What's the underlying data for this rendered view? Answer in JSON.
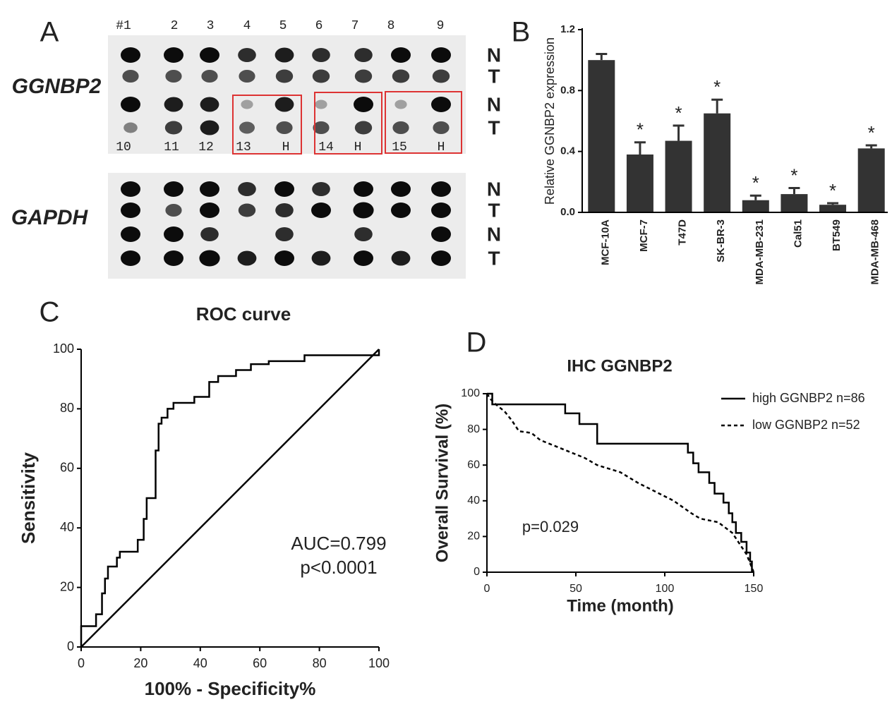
{
  "panel_a": {
    "panel_label": "A",
    "lane_numbers": [
      "#1",
      "2",
      "3",
      "4",
      "5",
      "6",
      "7",
      "8",
      "9"
    ],
    "lower_numbers": [
      "10",
      "11",
      "12",
      "13",
      "H",
      "14",
      "H",
      "15",
      "H"
    ],
    "genes": [
      "GGNBP2",
      "GAPDH"
    ],
    "rows": [
      [
        "N",
        "T",
        "N",
        "T"
      ],
      [
        "N",
        "T",
        "N",
        "T"
      ]
    ]
  },
  "chart_data": [
    {
      "type": "bar",
      "panel_label": "B",
      "y_label": "Relative GGNBP2 expression",
      "categories": [
        "MCF-10A",
        "MCF-7",
        "T47D",
        "SK-BR-3",
        "MDA-MB-231",
        "Cal51",
        "BT549",
        "MDA-MB-468"
      ],
      "values": [
        1.0,
        0.38,
        0.47,
        0.65,
        0.08,
        0.12,
        0.05,
        0.42
      ],
      "errors": [
        0.04,
        0.08,
        0.1,
        0.09,
        0.03,
        0.04,
        0.01,
        0.02
      ],
      "significance": [
        null,
        "*",
        "*",
        "*",
        "*",
        "*",
        "*",
        "*"
      ],
      "color": "#333333",
      "ylim": [
        0,
        1.2
      ],
      "yticks": [
        {
          "value": 0,
          "label": "0.0"
        },
        0.4,
        0.8,
        1.2
      ]
    },
    {
      "type": "line",
      "panel_label": "C",
      "title": "ROC curve",
      "x_label": "100% - Specificity%",
      "y_label": "Sensitivity",
      "annotations": [
        "AUC=0.799",
        "p<0.0001"
      ],
      "series": [
        {
          "color": "#000000",
          "dash": false,
          "x": [
            0,
            0,
            5,
            5,
            7,
            7,
            8,
            8,
            9,
            9,
            12,
            12,
            13,
            13,
            19,
            19,
            21,
            21,
            22,
            22,
            25,
            25,
            26,
            26,
            27,
            27,
            29,
            29,
            31,
            31,
            38,
            38,
            43,
            43,
            46,
            46,
            52,
            52,
            57,
            57,
            63,
            63,
            75,
            75,
            100,
            100
          ],
          "values": [
            0,
            7,
            7,
            11,
            11,
            18,
            18,
            23,
            23,
            27,
            27,
            30,
            30,
            32,
            32,
            36,
            36,
            43,
            43,
            50,
            50,
            66,
            66,
            75,
            75,
            77,
            77,
            80,
            80,
            82,
            82,
            84,
            84,
            89,
            89,
            91,
            91,
            93,
            93,
            95,
            95,
            96,
            96,
            98,
            98,
            100
          ]
        },
        {
          "color": "#000000",
          "dash": false,
          "x": [
            0,
            100
          ],
          "values": [
            0,
            100
          ]
        }
      ],
      "xlim": [
        0,
        100
      ],
      "xticks": [
        0,
        20,
        40,
        60,
        80,
        100
      ],
      "ylim": [
        0,
        100
      ],
      "yticks": [
        0,
        20,
        40,
        60,
        80,
        100
      ]
    },
    {
      "type": "line",
      "panel_label": "D",
      "title": "IHC GGNBP2",
      "x_label": "Time (month)",
      "y_label": "Overall Survival (%)",
      "annotations": [
        "p=0.029"
      ],
      "series": [
        {
          "name": "high GGNBP2 n=86",
          "color": "#000000",
          "dash": false,
          "x": [
            0,
            3,
            3,
            44,
            44,
            52,
            52,
            62,
            62,
            113,
            113,
            116,
            116,
            119,
            119,
            125,
            125,
            128,
            128,
            133,
            133,
            136,
            136,
            138,
            138,
            140,
            140,
            143,
            143,
            146,
            146,
            148,
            148,
            149,
            149
          ],
          "values": [
            100,
            100,
            94,
            94,
            89,
            89,
            83,
            83,
            72,
            72,
            67,
            67,
            61,
            61,
            56,
            56,
            50,
            50,
            44,
            44,
            39,
            39,
            33,
            33,
            28,
            28,
            22,
            22,
            17,
            17,
            11,
            11,
            6,
            6,
            0
          ]
        },
        {
          "name": "low GGNBP2  n=52",
          "color": "#000000",
          "dash": true,
          "x": [
            0,
            2,
            5,
            10,
            14,
            18,
            25,
            30,
            35,
            45,
            55,
            62,
            75,
            85,
            95,
            105,
            115,
            120,
            130,
            138,
            142,
            146,
            148,
            150
          ],
          "values": [
            100,
            97,
            94,
            90,
            85,
            79,
            78,
            74,
            72,
            68,
            64,
            60,
            56,
            50,
            45,
            40,
            33,
            30,
            28,
            22,
            16,
            10,
            5,
            0
          ]
        }
      ],
      "xlim": [
        0,
        150
      ],
      "xticks": [
        0,
        50,
        100,
        150
      ],
      "ylim": [
        0,
        100
      ],
      "yticks": [
        0,
        20,
        40,
        60,
        80,
        100
      ]
    }
  ]
}
